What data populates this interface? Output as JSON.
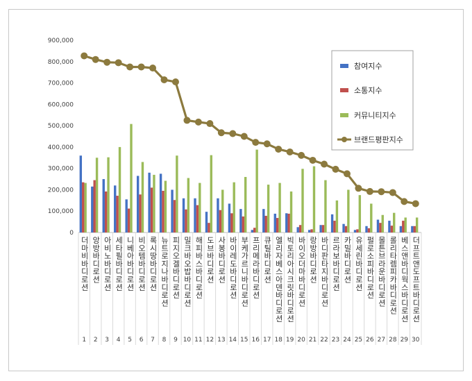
{
  "chart_data": {
    "type": "bar",
    "ylim": [
      0,
      900000
    ],
    "yticks": [
      "0",
      "100,000",
      "200,000",
      "300,000",
      "400,000",
      "500,000",
      "600,000",
      "700,000",
      "800,000",
      "900,000"
    ],
    "ytick_values": [
      0,
      100000,
      200000,
      300000,
      400000,
      500000,
      600000,
      700000,
      800000,
      900000
    ],
    "grid": false,
    "legend_position": "top-right",
    "categories": [
      "더마비바디로션",
      "앙방바디로션",
      "아비노바디로션",
      "세타필바디로션",
      "니베아바디로션",
      "비오템바디로션",
      "록시땅바디로션",
      "뉴트로지나바디로션",
      "피지오겔바디로션",
      "밀크바오밥바디로션",
      "해피바스바디로션",
      "도브바디로션",
      "사봉바디로션",
      "바이레도바디로션",
      "부케가르니바디로션",
      "프리메라바디로션",
      "큐틸바디로션",
      "엘리자베스아덴바디로션",
      "빅토리아시크릿바디로션",
      "바이오더마바디로션",
      "랑방바디로션",
      "바디판타지바디로션",
      "르라보바디로션",
      "카밀바디로션",
      "유세린바디로션",
      "펄로소피바디로션",
      "몰튼브라운바디로션",
      "롤리타렘피카바디로션",
      "베스앤바디웍스바디로션",
      "더프트앤도프트바디로션"
    ],
    "category_numbers": [
      "1",
      "2",
      "3",
      "4",
      "5",
      "6",
      "7",
      "8",
      "9",
      "10",
      "11",
      "12",
      "13",
      "14",
      "15",
      "16",
      "17",
      "18",
      "19",
      "20",
      "21",
      "22",
      "23",
      "24",
      "25",
      "26",
      "27",
      "28",
      "29",
      "30"
    ],
    "series": [
      {
        "name": "참여지수",
        "kind": "bar",
        "color": "#4472c4",
        "values": [
          360000,
          215000,
          250000,
          220000,
          155000,
          265000,
          280000,
          275000,
          200000,
          160000,
          160000,
          97000,
          160000,
          135000,
          110000,
          12000,
          110000,
          88000,
          90000,
          25000,
          12000,
          35000,
          85000,
          40000,
          12000,
          30000,
          60000,
          55000,
          30000,
          30000
        ]
      },
      {
        "name": "소통지수",
        "kind": "bar",
        "color": "#c0504d",
        "values": [
          235000,
          245000,
          192000,
          172000,
          112000,
          178000,
          210000,
          195000,
          152000,
          108000,
          128000,
          45000,
          105000,
          90000,
          75000,
          22000,
          78000,
          68000,
          88000,
          35000,
          15000,
          35000,
          55000,
          30000,
          15000,
          20000,
          45000,
          32000,
          55000,
          30000
        ]
      },
      {
        "name": "커뮤니티지수",
        "kind": "bar",
        "color": "#9bbb59",
        "values": [
          232000,
          350000,
          352000,
          400000,
          508000,
          330000,
          270000,
          242000,
          360000,
          255000,
          232000,
          362000,
          200000,
          235000,
          260000,
          388000,
          224000,
          232000,
          192000,
          298000,
          310000,
          245000,
          150000,
          200000,
          175000,
          135000,
          82000,
          92000,
          70000,
          70000
        ]
      },
      {
        "name": "브랜드평판지수",
        "kind": "line",
        "color": "#8c7a3e",
        "values": [
          827000,
          810000,
          797000,
          795000,
          775000,
          775000,
          770000,
          715000,
          705000,
          525000,
          517000,
          510000,
          467000,
          463000,
          450000,
          422000,
          415000,
          390000,
          377000,
          361000,
          338000,
          320000,
          296000,
          275000,
          207000,
          192000,
          191000,
          187000,
          145000,
          135000
        ]
      }
    ]
  }
}
